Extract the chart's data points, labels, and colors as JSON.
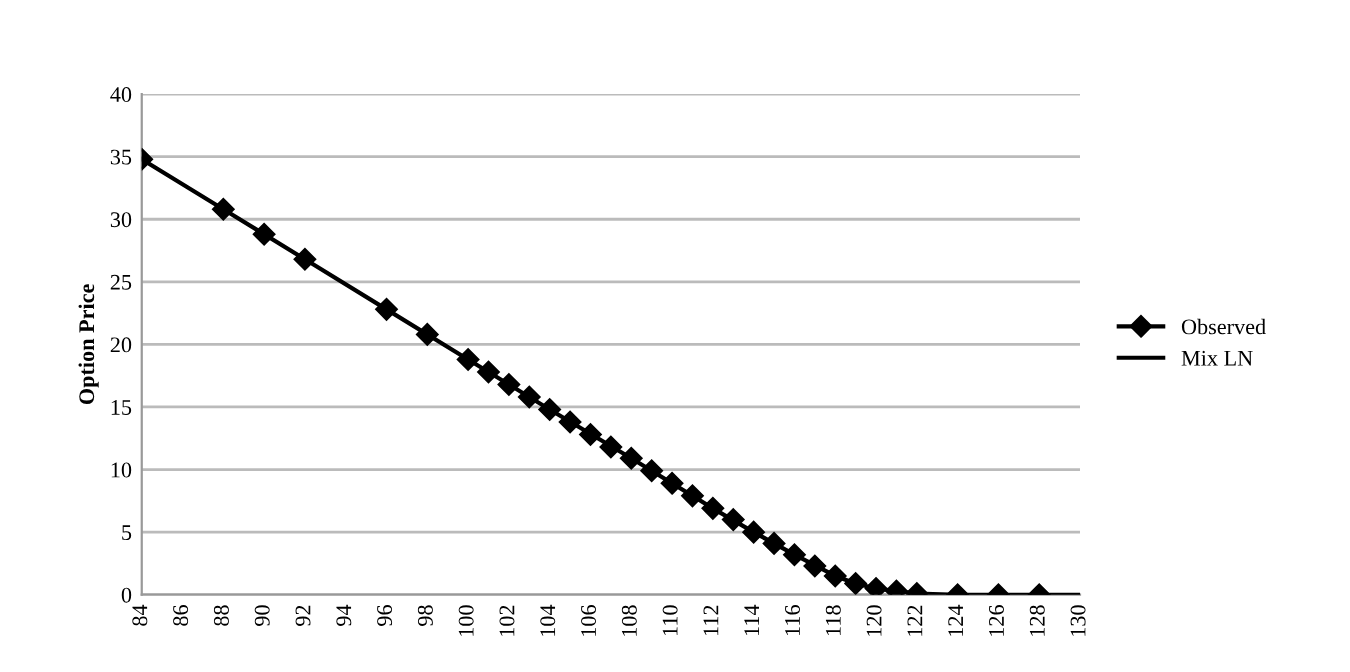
{
  "chart_data": {
    "type": "scatter",
    "ylabel": "Option Price",
    "xlim": [
      84,
      130
    ],
    "xticks": [
      84,
      86,
      88,
      90,
      92,
      94,
      96,
      98,
      100,
      102,
      104,
      106,
      108,
      110,
      112,
      114,
      116,
      118,
      120,
      122,
      124,
      126,
      128,
      130
    ],
    "ylim": [
      0,
      40
    ],
    "yticks": [
      0,
      5,
      10,
      15,
      20,
      25,
      30,
      35,
      40
    ],
    "grid": "y",
    "legend": "right",
    "series": [
      {
        "name": "Observed",
        "marker": "diamond",
        "color": "#000000",
        "x": [
          84,
          88,
          90,
          92,
          96,
          98,
          100,
          101,
          102,
          103,
          104,
          105,
          106,
          107,
          108,
          109,
          110,
          111,
          112,
          113,
          114,
          115,
          116,
          117,
          118,
          119,
          120,
          121,
          122,
          124,
          126,
          128
        ],
        "values": [
          34.8,
          30.8,
          28.8,
          26.8,
          22.8,
          20.8,
          18.8,
          17.8,
          16.8,
          15.8,
          14.8,
          13.8,
          12.8,
          11.8,
          10.9,
          9.9,
          8.9,
          7.9,
          6.9,
          6.0,
          5.0,
          4.1,
          3.2,
          2.3,
          1.5,
          0.9,
          0.5,
          0.3,
          0.1,
          0,
          0,
          0
        ]
      },
      {
        "name": "Mix LN",
        "type": "line",
        "marker": "none",
        "color": "#000000",
        "x": [
          84,
          88,
          92,
          96,
          100,
          104,
          108,
          112,
          114,
          116,
          118,
          119,
          120,
          121,
          122,
          124,
          126,
          128,
          130
        ],
        "values": [
          34.8,
          30.8,
          26.8,
          22.8,
          18.8,
          14.8,
          10.9,
          6.9,
          5.0,
          3.2,
          1.5,
          0.9,
          0.5,
          0.3,
          0.1,
          0,
          0,
          0,
          0
        ]
      }
    ]
  }
}
